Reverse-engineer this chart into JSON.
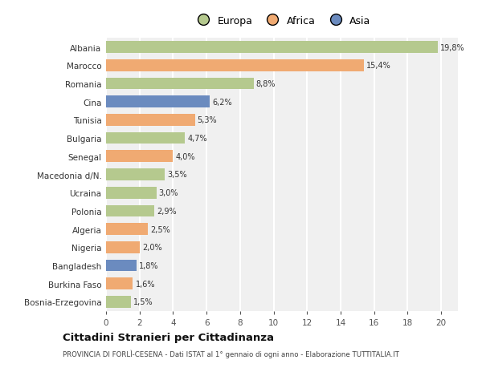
{
  "countries": [
    "Albania",
    "Marocco",
    "Romania",
    "Cina",
    "Tunisia",
    "Bulgaria",
    "Senegal",
    "Macedonia d/N.",
    "Ucraina",
    "Polonia",
    "Algeria",
    "Nigeria",
    "Bangladesh",
    "Burkina Faso",
    "Bosnia-Erzegovina"
  ],
  "values": [
    19.8,
    15.4,
    8.8,
    6.2,
    5.3,
    4.7,
    4.0,
    3.5,
    3.0,
    2.9,
    2.5,
    2.0,
    1.8,
    1.6,
    1.5
  ],
  "labels": [
    "19,8%",
    "15,4%",
    "8,8%",
    "6,2%",
    "5,3%",
    "4,7%",
    "4,0%",
    "3,5%",
    "3,0%",
    "2,9%",
    "2,5%",
    "2,0%",
    "1,8%",
    "1,6%",
    "1,5%"
  ],
  "continents": [
    "Europa",
    "Africa",
    "Europa",
    "Asia",
    "Africa",
    "Europa",
    "Africa",
    "Europa",
    "Europa",
    "Europa",
    "Africa",
    "Africa",
    "Asia",
    "Africa",
    "Europa"
  ],
  "colors": {
    "Europa": "#b5c98e",
    "Africa": "#f0aa72",
    "Asia": "#6b8bbf"
  },
  "background_color": "#ffffff",
  "plot_bg_color": "#f0f0f0",
  "title": "Cittadini Stranieri per Cittadinanza",
  "subtitle": "PROVINCIA DI FORLÌ-CESENA - Dati ISTAT al 1° gennaio di ogni anno - Elaborazione TUTTITALIA.IT",
  "xlim": [
    0,
    21
  ],
  "xticks": [
    0,
    2,
    4,
    6,
    8,
    10,
    12,
    14,
    16,
    18,
    20
  ],
  "grid_color": "#ffffff",
  "bar_height": 0.65
}
